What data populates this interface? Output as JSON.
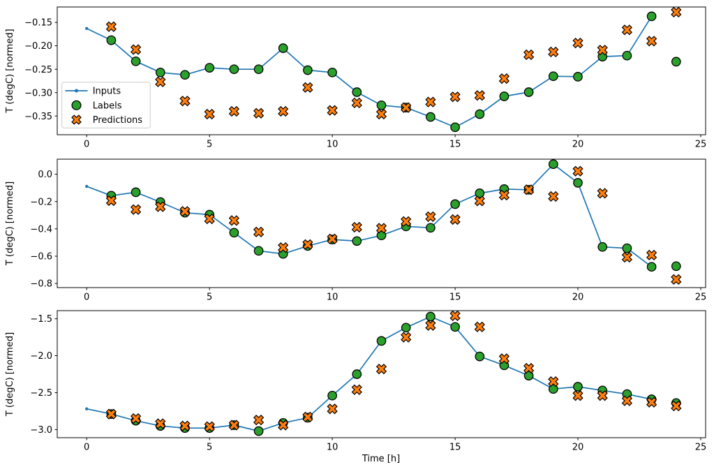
{
  "figure": {
    "background": "#ffffff",
    "colors": {
      "inputs_line": "#1f77b4",
      "labels_marker": "#2ca02c",
      "predictions_marker": "#ff7f0e",
      "marker_edge": "#000000",
      "axis": "#000000",
      "legend_border": "#cccccc",
      "legend_background": "#ffffff"
    },
    "legend": {
      "position": "upper-left",
      "entries": [
        {
          "label": "Inputs",
          "marker": "line-dot",
          "color": "#1f77b4"
        },
        {
          "label": "Labels",
          "marker": "circle",
          "color": "#2ca02c"
        },
        {
          "label": "Predictions",
          "marker": "X",
          "color": "#ff7f0e"
        }
      ]
    }
  },
  "chart_data": [
    {
      "type": "line",
      "title": "",
      "xlabel": "",
      "ylabel": "T (degC) [normed]",
      "grid": false,
      "xlim": [
        -1.2,
        25.2
      ],
      "ylim": [
        -0.39,
        -0.117
      ],
      "xticks": {
        "values": [
          0,
          5,
          10,
          15,
          20,
          25
        ],
        "labels": [
          "0",
          "5",
          "10",
          "15",
          "20",
          "25"
        ]
      },
      "yticks": {
        "values": [
          -0.15,
          -0.2,
          -0.25,
          -0.3,
          -0.35
        ],
        "labels": [
          "−0.15",
          "−0.20",
          "−0.25",
          "−0.30",
          "−0.35"
        ]
      },
      "legend": true,
      "series": [
        {
          "name": "Inputs",
          "render": "line",
          "marker": "dot",
          "color": "#1f77b4",
          "x": [
            0,
            1,
            2,
            3,
            4,
            5,
            6,
            7,
            8,
            9,
            10,
            11,
            12,
            13,
            14,
            15,
            16,
            17,
            18,
            19,
            20,
            21,
            22,
            23
          ],
          "y": [
            -0.163,
            -0.188,
            -0.233,
            -0.257,
            -0.262,
            -0.247,
            -0.25,
            -0.25,
            -0.205,
            -0.252,
            -0.257,
            -0.299,
            -0.327,
            -0.332,
            -0.352,
            -0.374,
            -0.346,
            -0.308,
            -0.299,
            -0.265,
            -0.266,
            -0.223,
            -0.221,
            -0.137
          ]
        },
        {
          "name": "Labels",
          "render": "scatter",
          "marker": "circle",
          "color": "#2ca02c",
          "edgecolor": "#000000",
          "x": [
            1,
            2,
            3,
            4,
            5,
            6,
            7,
            8,
            9,
            10,
            11,
            12,
            13,
            14,
            15,
            16,
            17,
            18,
            19,
            20,
            21,
            22,
            23,
            24
          ],
          "y": [
            -0.188,
            -0.233,
            -0.257,
            -0.262,
            -0.247,
            -0.25,
            -0.25,
            -0.205,
            -0.252,
            -0.257,
            -0.299,
            -0.327,
            -0.332,
            -0.352,
            -0.374,
            -0.346,
            -0.308,
            -0.299,
            -0.265,
            -0.266,
            -0.223,
            -0.221,
            -0.137,
            -0.234
          ]
        },
        {
          "name": "Predictions",
          "render": "scatter",
          "marker": "X",
          "color": "#ff7f0e",
          "edgecolor": "#000000",
          "x": [
            1,
            2,
            3,
            4,
            5,
            6,
            7,
            8,
            9,
            10,
            11,
            12,
            13,
            14,
            15,
            16,
            17,
            18,
            19,
            20,
            21,
            22,
            23,
            24
          ],
          "y": [
            -0.159,
            -0.208,
            -0.277,
            -0.318,
            -0.346,
            -0.34,
            -0.344,
            -0.34,
            -0.289,
            -0.338,
            -0.322,
            -0.346,
            -0.332,
            -0.32,
            -0.309,
            -0.306,
            -0.27,
            -0.219,
            -0.213,
            -0.194,
            -0.209,
            -0.166,
            -0.19,
            -0.128
          ]
        }
      ]
    },
    {
      "type": "line",
      "title": "",
      "xlabel": "",
      "ylabel": "T (degC) [normed]",
      "grid": false,
      "xlim": [
        -1.2,
        25.2
      ],
      "ylim": [
        -0.83,
        0.11
      ],
      "xticks": {
        "values": [
          0,
          5,
          10,
          15,
          20,
          25
        ],
        "labels": [
          "0",
          "5",
          "10",
          "15",
          "20",
          "25"
        ]
      },
      "yticks": {
        "values": [
          0.0,
          -0.2,
          -0.4,
          -0.6,
          -0.8
        ],
        "labels": [
          "0.0",
          "−0.2",
          "−0.4",
          "−0.6",
          "−0.8"
        ]
      },
      "legend": false,
      "series": [
        {
          "name": "Inputs",
          "render": "line",
          "marker": "dot",
          "color": "#1f77b4",
          "x": [
            0,
            1,
            2,
            3,
            4,
            5,
            6,
            7,
            8,
            9,
            10,
            11,
            12,
            13,
            14,
            15,
            16,
            17,
            18,
            19,
            20,
            21,
            22,
            23
          ],
          "y": [
            -0.089,
            -0.157,
            -0.132,
            -0.204,
            -0.282,
            -0.296,
            -0.428,
            -0.561,
            -0.583,
            -0.525,
            -0.478,
            -0.489,
            -0.448,
            -0.382,
            -0.392,
            -0.219,
            -0.14,
            -0.109,
            -0.114,
            0.073,
            -0.063,
            -0.532,
            -0.542,
            -0.678
          ]
        },
        {
          "name": "Labels",
          "render": "scatter",
          "marker": "circle",
          "color": "#2ca02c",
          "edgecolor": "#000000",
          "x": [
            1,
            2,
            3,
            4,
            5,
            6,
            7,
            8,
            9,
            10,
            11,
            12,
            13,
            14,
            15,
            16,
            17,
            18,
            19,
            20,
            21,
            22,
            23,
            24
          ],
          "y": [
            -0.157,
            -0.132,
            -0.204,
            -0.282,
            -0.296,
            -0.428,
            -0.561,
            -0.583,
            -0.525,
            -0.478,
            -0.489,
            -0.448,
            -0.382,
            -0.392,
            -0.219,
            -0.14,
            -0.109,
            -0.114,
            0.073,
            -0.063,
            -0.532,
            -0.542,
            -0.678,
            -0.673
          ]
        },
        {
          "name": "Predictions",
          "render": "scatter",
          "marker": "X",
          "color": "#ff7f0e",
          "edgecolor": "#000000",
          "x": [
            1,
            2,
            3,
            4,
            5,
            6,
            7,
            8,
            9,
            10,
            11,
            12,
            13,
            14,
            15,
            16,
            17,
            18,
            19,
            20,
            21,
            22,
            23,
            24
          ],
          "y": [
            -0.194,
            -0.259,
            -0.238,
            -0.272,
            -0.327,
            -0.339,
            -0.423,
            -0.537,
            -0.515,
            -0.474,
            -0.388,
            -0.395,
            -0.346,
            -0.311,
            -0.332,
            -0.196,
            -0.153,
            -0.114,
            -0.163,
            0.022,
            -0.14,
            -0.608,
            -0.592,
            -0.77
          ]
        }
      ]
    },
    {
      "type": "line",
      "title": "",
      "xlabel": "Time [h]",
      "ylabel": "T (degC) [normed]",
      "grid": false,
      "xlim": [
        -1.2,
        25.2
      ],
      "ylim": [
        -3.11,
        -1.39
      ],
      "xticks": {
        "values": [
          0,
          5,
          10,
          15,
          20,
          25
        ],
        "labels": [
          "0",
          "5",
          "10",
          "15",
          "20",
          "25"
        ]
      },
      "yticks": {
        "values": [
          -1.5,
          -2.0,
          -2.5,
          -3.0
        ],
        "labels": [
          "−1.5",
          "−2.0",
          "−2.5",
          "−3.0"
        ]
      },
      "legend": false,
      "series": [
        {
          "name": "Inputs",
          "render": "line",
          "marker": "dot",
          "color": "#1f77b4",
          "x": [
            0,
            1,
            2,
            3,
            4,
            5,
            6,
            7,
            8,
            9,
            10,
            11,
            12,
            13,
            14,
            15,
            16,
            17,
            18,
            19,
            20,
            21,
            22,
            23
          ],
          "y": [
            -2.72,
            -2.79,
            -2.88,
            -2.95,
            -2.98,
            -2.98,
            -2.94,
            -3.02,
            -2.91,
            -2.84,
            -2.54,
            -2.25,
            -1.8,
            -1.62,
            -1.47,
            -1.61,
            -2.01,
            -2.13,
            -2.27,
            -2.45,
            -2.42,
            -2.47,
            -2.52,
            -2.59
          ]
        },
        {
          "name": "Labels",
          "render": "scatter",
          "marker": "circle",
          "color": "#2ca02c",
          "edgecolor": "#000000",
          "x": [
            1,
            2,
            3,
            4,
            5,
            6,
            7,
            8,
            9,
            10,
            11,
            12,
            13,
            14,
            15,
            16,
            17,
            18,
            19,
            20,
            21,
            22,
            23,
            24
          ],
          "y": [
            -2.79,
            -2.88,
            -2.95,
            -2.98,
            -2.98,
            -2.94,
            -3.02,
            -2.91,
            -2.84,
            -2.54,
            -2.25,
            -1.8,
            -1.62,
            -1.47,
            -1.61,
            -2.01,
            -2.13,
            -2.27,
            -2.45,
            -2.42,
            -2.47,
            -2.52,
            -2.59,
            -2.64
          ]
        },
        {
          "name": "Predictions",
          "render": "scatter",
          "marker": "X",
          "color": "#ff7f0e",
          "edgecolor": "#000000",
          "x": [
            1,
            2,
            3,
            4,
            5,
            6,
            7,
            8,
            9,
            10,
            11,
            12,
            13,
            14,
            15,
            16,
            17,
            18,
            19,
            20,
            21,
            22,
            23,
            24
          ],
          "y": [
            -2.79,
            -2.85,
            -2.92,
            -2.95,
            -2.96,
            -2.94,
            -2.87,
            -2.94,
            -2.83,
            -2.72,
            -2.46,
            -2.18,
            -1.75,
            -1.59,
            -1.46,
            -1.61,
            -2.04,
            -2.17,
            -2.35,
            -2.54,
            -2.54,
            -2.61,
            -2.63,
            -2.68
          ]
        }
      ]
    }
  ]
}
